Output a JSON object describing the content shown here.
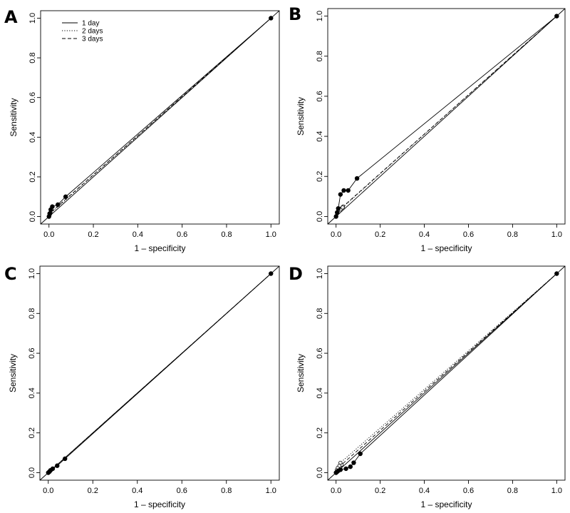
{
  "chart_data": [
    {
      "type": "line",
      "panel": "A",
      "xlabel": "1 – specificity",
      "ylabel": "Sensitivity",
      "xlim": [
        0,
        1
      ],
      "ylim": [
        0,
        1
      ],
      "x_ticks": [
        "0.0",
        "0.2",
        "0.4",
        "0.6",
        "0.8",
        "1.0"
      ],
      "y_ticks": [
        "0.0",
        "0.2",
        "0.4",
        "0.6",
        "0.8",
        "1.0"
      ],
      "diagonal": true,
      "legend": {
        "position": "top-left",
        "entries": [
          "1 day",
          "2 days",
          "3 days"
        ]
      },
      "series": [
        {
          "name": "1 day",
          "line": "solid",
          "marker": "filled-circle",
          "x": [
            0,
            0.003,
            0.008,
            0.015,
            0.04,
            0.075,
            1
          ],
          "y": [
            0,
            0.015,
            0.035,
            0.05,
            0.06,
            0.1,
            1
          ]
        },
        {
          "name": "2 days",
          "line": "dotted",
          "marker": "open-circle",
          "x": [
            0,
            0.003,
            0.006,
            1
          ],
          "y": [
            0,
            0.008,
            0.015,
            1
          ]
        },
        {
          "name": "3 days",
          "line": "dashed",
          "marker": "open-circle",
          "x": [
            0,
            0.003,
            0.007,
            1
          ],
          "y": [
            0,
            0.01,
            0.02,
            1
          ]
        }
      ]
    },
    {
      "type": "line",
      "panel": "B",
      "xlabel": "1 – specificity",
      "ylabel": "Sensitivity",
      "xlim": [
        0,
        1
      ],
      "ylim": [
        0,
        1
      ],
      "x_ticks": [
        "0.0",
        "0.2",
        "0.4",
        "0.6",
        "0.8",
        "1.0"
      ],
      "y_ticks": [
        "0.0",
        "0.2",
        "0.4",
        "0.6",
        "0.8",
        "1.0"
      ],
      "diagonal": true,
      "series": [
        {
          "name": "1 day",
          "line": "solid",
          "marker": "filled-circle",
          "x": [
            0,
            0.005,
            0.01,
            0.02,
            0.035,
            0.055,
            0.095,
            1
          ],
          "y": [
            0,
            0.02,
            0.04,
            0.11,
            0.13,
            0.13,
            0.19,
            1
          ]
        },
        {
          "name": "2 days",
          "line": "dotted",
          "marker": "open-circle",
          "x": [
            0,
            0.005,
            0.01,
            0.02,
            0.03,
            1
          ],
          "y": [
            0,
            0.015,
            0.03,
            0.035,
            0.045,
            1
          ]
        },
        {
          "name": "3 days",
          "line": "dashed",
          "marker": "open-circle",
          "x": [
            0,
            0.005,
            0.012,
            0.022,
            0.032,
            1
          ],
          "y": [
            0,
            0.02,
            0.035,
            0.04,
            0.05,
            1
          ]
        }
      ]
    },
    {
      "type": "line",
      "panel": "C",
      "xlabel": "1 – specificity",
      "ylabel": "Sensitivity",
      "xlim": [
        0,
        1
      ],
      "ylim": [
        0,
        1
      ],
      "x_ticks": [
        "0.0",
        "0.2",
        "0.4",
        "0.6",
        "0.8",
        "1.0"
      ],
      "y_ticks": [
        "0.0",
        "0.2",
        "0.4",
        "0.6",
        "0.8",
        "1.0"
      ],
      "diagonal": true,
      "series": [
        {
          "name": "1 day",
          "line": "solid",
          "marker": "filled-circle",
          "x": [
            0,
            0.005,
            0.01,
            0.02,
            0.04,
            0.075,
            1
          ],
          "y": [
            0,
            0.005,
            0.012,
            0.02,
            0.035,
            0.07,
            1
          ]
        },
        {
          "name": "2 days",
          "line": "dotted",
          "marker": "open-circle",
          "x": [
            0,
            0.005,
            0.01,
            1
          ],
          "y": [
            0,
            0.005,
            0.01,
            1
          ]
        },
        {
          "name": "3 days",
          "line": "dashed",
          "marker": "open-circle",
          "x": [
            0,
            0.006,
            0.012,
            1
          ],
          "y": [
            0,
            0.006,
            0.012,
            1
          ]
        }
      ]
    },
    {
      "type": "line",
      "panel": "D",
      "xlabel": "1 – specificity",
      "ylabel": "Sensitivity",
      "xlim": [
        0,
        1
      ],
      "ylim": [
        0,
        1
      ],
      "x_ticks": [
        "0.0",
        "0.2",
        "0.4",
        "0.6",
        "0.8",
        "1.0"
      ],
      "y_ticks": [
        "0.0",
        "0.2",
        "0.4",
        "0.6",
        "0.8",
        "1.0"
      ],
      "diagonal": true,
      "series": [
        {
          "name": "1 day",
          "line": "solid",
          "marker": "filled-circle",
          "x": [
            0,
            0.005,
            0.01,
            0.02,
            0.045,
            0.065,
            0.08,
            0.11,
            1
          ],
          "y": [
            0,
            0.005,
            0.01,
            0.015,
            0.02,
            0.03,
            0.05,
            0.095,
            1
          ]
        },
        {
          "name": "2 days",
          "line": "dotted",
          "marker": "open-circle",
          "x": [
            0,
            0.004,
            0.008,
            0.015,
            0.02,
            1
          ],
          "y": [
            0,
            0.015,
            0.025,
            0.035,
            0.05,
            1
          ]
        },
        {
          "name": "3 days",
          "line": "dashed",
          "marker": "open-circle",
          "x": [
            0,
            0.005,
            0.01,
            0.018,
            0.025,
            1
          ],
          "y": [
            0,
            0.01,
            0.02,
            0.03,
            0.04,
            1
          ]
        }
      ]
    }
  ]
}
